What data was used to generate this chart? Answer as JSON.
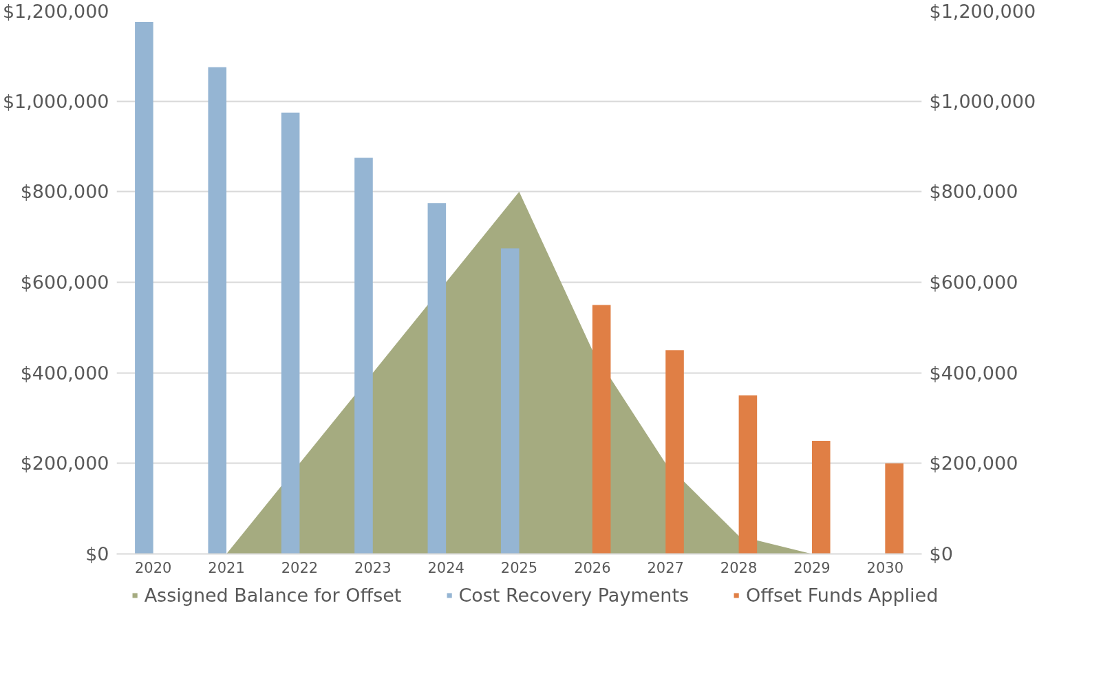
{
  "chart_data": {
    "type": "bar",
    "categories": [
      "2020",
      "2021",
      "2022",
      "2023",
      "2024",
      "2025",
      "2026",
      "2027",
      "2028",
      "2029",
      "2030"
    ],
    "series": [
      {
        "name": "Assigned Balance for Offset",
        "type": "area",
        "color": "#a5ab80",
        "values": [
          0,
          0,
          200000,
          400000,
          600000,
          800000,
          450000,
          200000,
          40000,
          0,
          0
        ]
      },
      {
        "name": "Cost Recovery Payments",
        "color": "#95b5d3",
        "values": [
          1175000,
          1075000,
          975000,
          875000,
          775000,
          675000,
          null,
          null,
          null,
          null,
          null
        ]
      },
      {
        "name": "Offset Funds Applied",
        "color": "#e07f45",
        "values": [
          null,
          null,
          null,
          null,
          null,
          null,
          550000,
          450000,
          350000,
          250000,
          200000
        ]
      }
    ],
    "ylim": [
      0,
      1200000
    ],
    "yticks": [
      {
        "value": 0,
        "label": "$0"
      },
      {
        "value": 200000,
        "label": "$200,000"
      },
      {
        "value": 400000,
        "label": "$400,000"
      },
      {
        "value": 600000,
        "label": "$600,000"
      },
      {
        "value": 800000,
        "label": "$800,000"
      },
      {
        "value": 1000000,
        "label": "$1,000,000"
      },
      {
        "value": 1200000,
        "label": "$1,200,000"
      }
    ],
    "y2lim": [
      0,
      1200000
    ],
    "y2ticks": [
      {
        "value": 0,
        "label": "$0"
      },
      {
        "value": 200000,
        "label": "$200,000"
      },
      {
        "value": 400000,
        "label": "$400,000"
      },
      {
        "value": 600000,
        "label": "$600,000"
      },
      {
        "value": 800000,
        "label": "$800,000"
      },
      {
        "value": 1000000,
        "label": "$1,000,000"
      },
      {
        "value": 1200000,
        "label": "$1,200,000"
      }
    ],
    "grid": "y",
    "legend": "bottom"
  }
}
